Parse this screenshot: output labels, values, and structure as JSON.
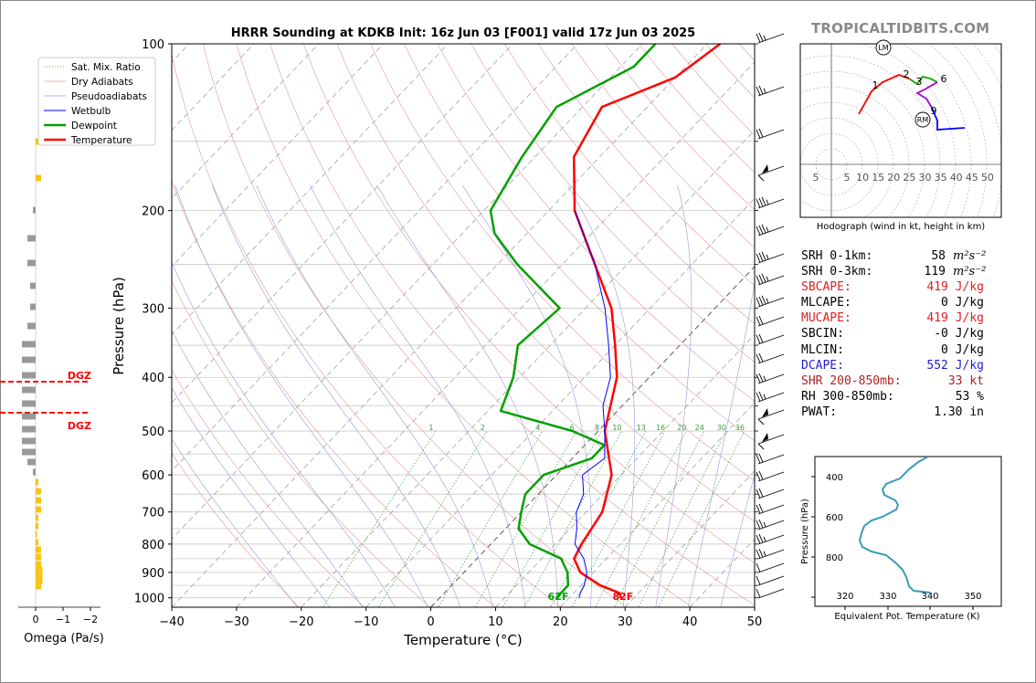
{
  "title": "HRRR Sounding at KDKB Init: 16z Jun 03 [F001] valid 17z Jun 03 2025",
  "site": "TROPICALTIDBITS.COM",
  "chart_data": [
    {
      "type": "line",
      "name": "skew-t",
      "xlabel": "Temperature (°C)",
      "ylabel": "Pressure (hPa)",
      "xlim": [
        -40,
        50
      ],
      "ylim": [
        1040,
        100
      ],
      "x_ticks": [
        "−40",
        "−30",
        "−20",
        "−10",
        "0",
        "10",
        "20",
        "30",
        "40",
        "50"
      ],
      "y_ticks": [
        "100",
        "200",
        "300",
        "400",
        "500",
        "600",
        "700",
        "800",
        "900",
        "1000"
      ],
      "legend": [
        "Sat. Mix. Ratio",
        "Dry Adiabats",
        "Pseudoadiabats",
        "Wetbulb",
        "Dewpoint",
        "Temperature"
      ],
      "legend_position": "top-left",
      "series": [
        {
          "name": "Temperature",
          "color": "#ff0000",
          "points": [
            [
              1000,
              28
            ],
            [
              980,
              27
            ],
            [
              950,
              23
            ],
            [
              900,
              18
            ],
            [
              850,
              15
            ],
            [
              800,
              14
            ],
            [
              700,
              12.5
            ],
            [
              600,
              8.5
            ],
            [
              500,
              1
            ],
            [
              400,
              -5
            ],
            [
              350,
              -10
            ],
            [
              300,
              -16
            ],
            [
              250,
              -25
            ],
            [
              200,
              -36
            ],
            [
              160,
              -44
            ],
            [
              130,
              -47
            ],
            [
              115,
              -40
            ],
            [
              100,
              -38
            ]
          ]
        },
        {
          "name": "Dewpoint",
          "color": "#00a000",
          "points": [
            [
              1000,
              18
            ],
            [
              980,
              18
            ],
            [
              950,
              18
            ],
            [
              900,
              16
            ],
            [
              850,
              13
            ],
            [
              800,
              6
            ],
            [
              750,
              2
            ],
            [
              700,
              0
            ],
            [
              650,
              -2
            ],
            [
              600,
              -2
            ],
            [
              560,
              3
            ],
            [
              530,
              3
            ],
            [
              500,
              -4
            ],
            [
              460,
              -18
            ],
            [
              400,
              -21
            ],
            [
              350,
              -25
            ],
            [
              300,
              -24
            ],
            [
              250,
              -37
            ],
            [
              220,
              -45
            ],
            [
              200,
              -49
            ],
            [
              160,
              -52
            ],
            [
              130,
              -54
            ],
            [
              110,
              -48
            ],
            [
              100,
              -48
            ]
          ]
        },
        {
          "name": "Wetbulb",
          "color": "#0000ff",
          "points": [
            [
              1000,
              21.5
            ],
            [
              980,
              21
            ],
            [
              950,
              20.5
            ],
            [
              900,
              19
            ],
            [
              850,
              16.5
            ],
            [
              800,
              13
            ],
            [
              750,
              11
            ],
            [
              700,
              8.5
            ],
            [
              650,
              7
            ],
            [
              600,
              4
            ],
            [
              560,
              5
            ],
            [
              500,
              1
            ],
            [
              450,
              -3
            ],
            [
              400,
              -6
            ],
            [
              350,
              -11
            ],
            [
              300,
              -17
            ],
            [
              250,
              -25
            ],
            [
              200,
              -36
            ]
          ]
        }
      ],
      "annotations": [
        "62F",
        "82F"
      ],
      "mix_ratio_labels": [
        "1",
        "2",
        "4",
        "6",
        "8",
        "10",
        "13",
        "16",
        "20",
        "24",
        "30",
        "36"
      ],
      "dgz": [
        "DGZ",
        "DGZ"
      ],
      "omega_xlabel": "Omega (Pa/s)",
      "omega_ticks": [
        "0",
        "−1",
        "−2"
      ]
    },
    {
      "type": "line",
      "name": "hodograph",
      "caption": "Hodograph (wind in kt, height in km)",
      "ring_labels": [
        "5",
        "5",
        "10",
        "15",
        "20",
        "25",
        "30",
        "35",
        "40",
        "45",
        "50"
      ],
      "height_labels": [
        "1",
        "2",
        "3",
        "6",
        "9"
      ],
      "storm_motion_labels": [
        "LM",
        "RM"
      ]
    },
    {
      "type": "line",
      "name": "theta-e",
      "xlabel": "Equivalent Pot. Temperature (K)",
      "ylabel": "Pressure (hPa)",
      "x_ticks": [
        "320",
        "330",
        "340",
        "350"
      ],
      "y_ticks": [
        "400",
        "600",
        "800"
      ],
      "color": "#3a9bb5"
    }
  ],
  "stats": [
    {
      "label": "SRH 0-1km:",
      "value": "58",
      "unit": "m²s⁻²",
      "color": "#000000"
    },
    {
      "label": "SRH 0-3km:",
      "value": "119",
      "unit": "m²s⁻²",
      "color": "#000000"
    },
    {
      "label": "SBCAPE:",
      "value": "419 J/kg",
      "unit": "",
      "color": "#e02020"
    },
    {
      "label": "MLCAPE:",
      "value": "0 J/kg",
      "unit": "",
      "color": "#000000"
    },
    {
      "label": "MUCAPE:",
      "value": "419 J/kg",
      "unit": "",
      "color": "#e02020"
    },
    {
      "label": "SBCIN:",
      "value": "-0 J/kg",
      "unit": "",
      "color": "#000000"
    },
    {
      "label": "MLCIN:",
      "value": "0 J/kg",
      "unit": "",
      "color": "#000000"
    },
    {
      "label": "DCAPE:",
      "value": "552 J/kg",
      "unit": "",
      "color": "#2020d0"
    },
    {
      "label": "SHR 200-850mb:",
      "value": "33 kt",
      "unit": "",
      "color": "#b22020"
    },
    {
      "label": "RH 300-850mb:",
      "value": "53 %",
      "unit": "",
      "color": "#000000"
    },
    {
      "label": "PWAT:",
      "value": "1.30 in",
      "unit": "",
      "color": "#000000"
    }
  ]
}
